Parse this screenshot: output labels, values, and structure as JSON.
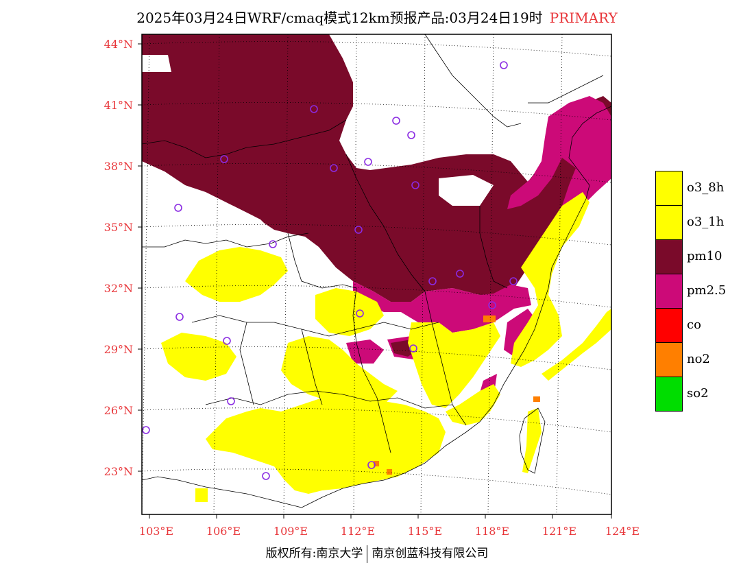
{
  "title": "2025年03月24日WRF/cmaq模式12km预报产品:03月24日19时",
  "title_tag": "PRIMARY",
  "lat_labels": [
    "44°N",
    "41°N",
    "38°N",
    "35°N",
    "32°N",
    "29°N",
    "26°N",
    "23°N"
  ],
  "lon_labels": [
    "103°E",
    "106°E",
    "109°E",
    "112°E",
    "115°E",
    "118°E",
    "121°E",
    "124°E"
  ],
  "legend": [
    {
      "label": "o3_8h",
      "color": "#ffff00"
    },
    {
      "label": "o3_1h",
      "color": "#ffff00"
    },
    {
      "label": "pm10",
      "color": "#7a0a2a"
    },
    {
      "label": "pm2.5",
      "color": "#cc0a78"
    },
    {
      "label": "co",
      "color": "#ff0000"
    },
    {
      "label": "no2",
      "color": "#ff7f00"
    },
    {
      "label": "so2",
      "color": "#00dd00"
    }
  ],
  "credit_left": "版权所有:南京大学",
  "credit_right": "南京创蓝科技有限公司",
  "colors": {
    "pm10": "#7a0a2a",
    "pm25": "#cc0a78",
    "o3": "#ffff00",
    "no2": "#ff7f00",
    "station": "#8a2be2",
    "label": "#e8363a"
  }
}
